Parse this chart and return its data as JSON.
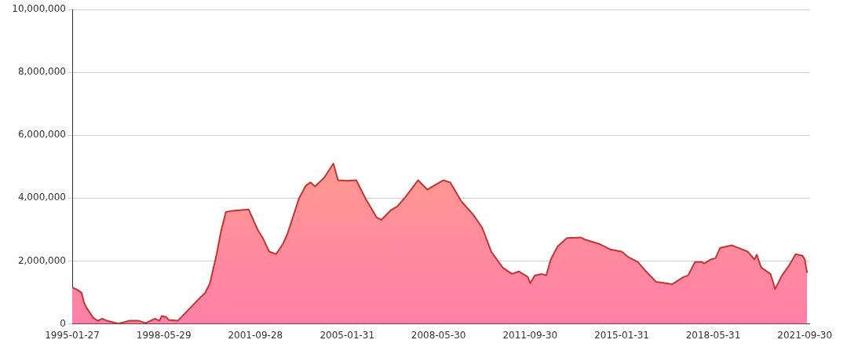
{
  "chart_data": {
    "type": "area",
    "x": [
      "1995-01-27",
      "1995-04",
      "1995-06",
      "1995-07",
      "1995-08",
      "1995-11",
      "1996-01",
      "1996-03",
      "1996-05",
      "1996-10",
      "1997-03",
      "1997-07",
      "1997-10",
      "1998-02",
      "1998-04",
      "1998-05",
      "1998-07",
      "1998-08",
      "1998-12",
      "1999-04",
      "1999-09",
      "1999-12",
      "2000-02",
      "2000-05",
      "2000-07",
      "2000-09",
      "2000-12",
      "2001-07",
      "2001-11",
      "2002-01",
      "2002-04",
      "2002-07",
      "2002-10",
      "2002-12",
      "2003-05",
      "2003-08",
      "2003-10",
      "2003-12",
      "2004-04",
      "2004-08",
      "2004-10",
      "2005-02",
      "2005-06",
      "2005-10",
      "2006-03",
      "2006-05",
      "2006-09",
      "2006-12",
      "2007-03",
      "2007-07",
      "2007-09",
      "2008-01",
      "2008-04",
      "2008-08",
      "2008-11",
      "2009-04",
      "2009-09",
      "2010-01",
      "2010-05",
      "2010-10",
      "2011-02",
      "2011-05",
      "2011-09",
      "2011-10",
      "2011-12",
      "2012-03",
      "2012-05",
      "2012-07",
      "2012-10",
      "2013-02",
      "2013-08",
      "2013-10",
      "2014-04",
      "2014-09",
      "2015-02",
      "2015-05",
      "2015-09",
      "2015-12",
      "2016-05",
      "2016-10",
      "2016-12",
      "2017-05",
      "2017-07",
      "2017-10",
      "2018-01",
      "2018-02",
      "2018-05",
      "2018-07",
      "2018-09",
      "2019-02",
      "2019-05",
      "2019-09",
      "2019-12",
      "2020-01",
      "2020-03",
      "2020-07",
      "2020-09",
      "2020-12",
      "2021-03",
      "2021-06",
      "2021-09",
      "2021-10",
      "2021-11"
    ],
    "series": [
      {
        "color": "#c23531",
        "values": [
          1160000,
          1090000,
          990000,
          700000,
          530000,
          200000,
          100000,
          170000,
          100000,
          10000,
          100000,
          100000,
          30000,
          170000,
          100000,
          250000,
          220000,
          130000,
          100000,
          400000,
          780000,
          990000,
          1290000,
          2220000,
          2980000,
          3560000,
          3600000,
          3640000,
          2980000,
          2750000,
          2300000,
          2220000,
          2550000,
          2880000,
          3990000,
          4400000,
          4500000,
          4370000,
          4650000,
          5100000,
          4570000,
          4550000,
          4570000,
          3990000,
          3380000,
          3310000,
          3610000,
          3740000,
          3990000,
          4370000,
          4570000,
          4270000,
          4400000,
          4570000,
          4500000,
          3890000,
          3480000,
          3060000,
          2300000,
          1790000,
          1590000,
          1670000,
          1490000,
          1290000,
          1540000,
          1590000,
          1540000,
          2050000,
          2470000,
          2730000,
          2750000,
          2680000,
          2550000,
          2370000,
          2300000,
          2120000,
          1970000,
          1720000,
          1340000,
          1290000,
          1260000,
          1490000,
          1540000,
          1970000,
          1970000,
          1920000,
          2050000,
          2090000,
          2420000,
          2500000,
          2420000,
          2300000,
          2050000,
          2200000,
          1790000,
          1590000,
          1110000,
          1540000,
          1840000,
          2220000,
          2170000,
          2050000,
          1620000
        ]
      }
    ],
    "xlim": [
      "1995-01-27",
      "2021-11-30"
    ],
    "xticks": [
      "1995-01-27",
      "1998-05-29",
      "2001-09-28",
      "2005-01-31",
      "2008-05-30",
      "2011-09-30",
      "2015-01-31",
      "2018-05-31",
      "2021-09-30"
    ],
    "ylim": [
      0,
      10000000
    ],
    "yticks": [
      0,
      {
        "value": 2000000,
        "label": "2,000,000"
      },
      {
        "value": 4000000,
        "label": "4,000,000"
      },
      {
        "value": 6000000,
        "label": "6,000,000"
      },
      {
        "value": 8000000,
        "label": "8,000,000"
      },
      {
        "value": 10000000,
        "label": "10,000,000"
      }
    ],
    "grid": "y",
    "legend": false,
    "marker": "none"
  }
}
